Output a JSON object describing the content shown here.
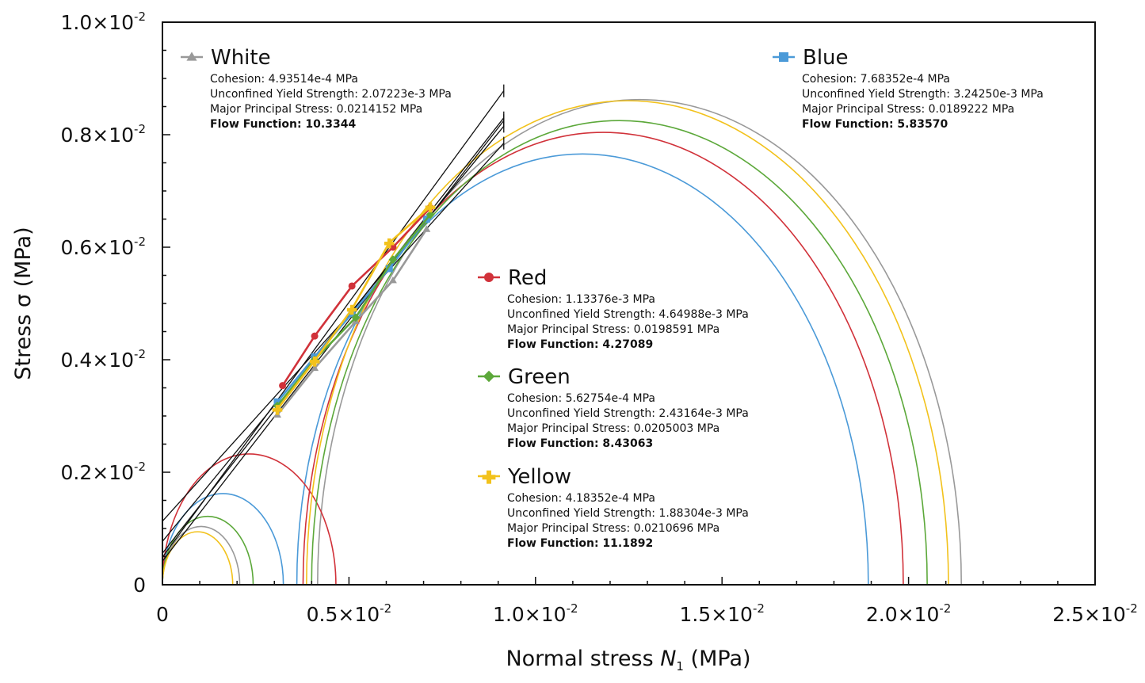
{
  "chart_data": {
    "type": "scatter",
    "xlabel_main": "Normal stress ",
    "xlabel_var": "N",
    "xlabel_sub": "1",
    "xlabel_unit": " (MPa)",
    "ylabel": "Stress σ (MPa)",
    "xlim": [
      0,
      0.025
    ],
    "ylim": [
      0,
      0.01
    ],
    "grid": false,
    "legend_placement": "inside",
    "x_ticks": [
      {
        "mant": "0",
        "exp": ""
      },
      {
        "mant": "0.5×10",
        "exp": "-2"
      },
      {
        "mant": "1.0×10",
        "exp": "-2"
      },
      {
        "mant": "1.5×10",
        "exp": "-2"
      },
      {
        "mant": "2.0×10",
        "exp": "-2"
      },
      {
        "mant": "2.5×10",
        "exp": "-2"
      }
    ],
    "y_ticks": [
      {
        "mant": "0",
        "exp": ""
      },
      {
        "mant": "0.2×10",
        "exp": "-2"
      },
      {
        "mant": "0.4×10",
        "exp": "-2"
      },
      {
        "mant": "0.6×10",
        "exp": "-2"
      },
      {
        "mant": "0.8×10",
        "exp": "-2"
      },
      {
        "mant": "1.0×10",
        "exp": "-2"
      }
    ],
    "series": [
      {
        "name": "White",
        "color": "#999999",
        "marker": "triangle",
        "points": [
          [
            0.00308,
            0.00302
          ],
          [
            0.00408,
            0.00385
          ],
          [
            0.00518,
            0.00468
          ],
          [
            0.00618,
            0.00541
          ],
          [
            0.00708,
            0.00632
          ]
        ],
        "yield_locus": [
          [
            0,
            0.00049
          ],
          [
            0.00915,
            0.00878
          ]
        ],
        "small_circle": {
          "center": 0.001036,
          "radius": 0.001036
        },
        "large_circle": {
          "center": 0.012787,
          "radius": 0.008628
        },
        "legend": {
          "cohesion": "Cohesion: 4.93514e-4 MPa",
          "ucys": "Unconfined Yield Strength: 2.07223e-3 MPa",
          "mps": "Major Principal Stress: 0.0214152 MPa",
          "ff": "Flow Function: 10.3344"
        }
      },
      {
        "name": "Blue",
        "color": "#4b9ad8",
        "marker": "square",
        "points": [
          [
            0.00308,
            0.00325
          ],
          [
            0.00408,
            0.00405
          ],
          [
            0.00508,
            0.00482
          ],
          [
            0.00608,
            0.00562
          ],
          [
            0.00708,
            0.0065
          ]
        ],
        "yield_locus": [
          [
            0,
            0.00077
          ],
          [
            0.00915,
            0.00815
          ]
        ],
        "small_circle": {
          "center": 0.001621,
          "radius": 0.001621
        },
        "large_circle": {
          "center": 0.011262,
          "radius": 0.00766
        },
        "legend": {
          "cohesion": "Cohesion: 7.68352e-4 MPa",
          "ucys": "Unconfined Yield Strength: 3.24250e-3 MPa",
          "mps": "Major Principal Stress: 0.0189222 MPa",
          "ff": "Flow Function: 5.83570"
        }
      },
      {
        "name": "Red",
        "color": "#d1323a",
        "marker": "circle",
        "points": [
          [
            0.00322,
            0.00354
          ],
          [
            0.00408,
            0.00442
          ],
          [
            0.00508,
            0.00531
          ],
          [
            0.00618,
            0.006
          ],
          [
            0.00718,
            0.0067
          ]
        ],
        "yield_locus": [
          [
            0,
            0.00113
          ],
          [
            0.00915,
            0.00785
          ]
        ],
        "small_circle": {
          "center": 0.002325,
          "radius": 0.002325
        },
        "large_circle": {
          "center": 0.011814,
          "radius": 0.008045
        },
        "legend": {
          "cohesion": "Cohesion: 1.13376e-3 MPa",
          "ucys": "Unconfined Yield Strength: 4.64988e-3 MPa",
          "mps": "Major Principal Stress: 0.0198591 MPa",
          "ff": "Flow Function: 4.27089"
        }
      },
      {
        "name": "Green",
        "color": "#5ca83a",
        "marker": "diamond",
        "points": [
          [
            0.00308,
            0.00318
          ],
          [
            0.00408,
            0.004
          ],
          [
            0.00518,
            0.00475
          ],
          [
            0.00618,
            0.00578
          ],
          [
            0.00718,
            0.00658
          ]
        ],
        "yield_locus": [
          [
            0,
            0.00056
          ],
          [
            0.00915,
            0.0083
          ]
        ],
        "small_circle": {
          "center": 0.001216,
          "radius": 0.001216
        },
        "large_circle": {
          "center": 0.012249,
          "radius": 0.008251
        },
        "legend": {
          "cohesion": "Cohesion: 5.62754e-4 MPa",
          "ucys": "Unconfined Yield Strength: 2.43164e-3 MPa",
          "mps": "Major Principal Stress: 0.0205003 MPa",
          "ff": "Flow Function: 8.43063"
        }
      },
      {
        "name": "Yellow",
        "color": "#f2c21c",
        "marker": "plus",
        "points": [
          [
            0.00308,
            0.00312
          ],
          [
            0.00408,
            0.00398
          ],
          [
            0.00508,
            0.0049
          ],
          [
            0.00608,
            0.00608
          ],
          [
            0.00718,
            0.00672
          ]
        ],
        "yield_locus": [
          [
            0,
            0.00042
          ],
          [
            0.00915,
            0.00825
          ]
        ],
        "small_circle": {
          "center": 0.000942,
          "radius": 0.000942
        },
        "large_circle": {
          "center": 0.012466,
          "radius": 0.008604
        },
        "legend": {
          "cohesion": "Cohesion: 4.18352e-4 MPa",
          "ucys": "Unconfined Yield Strength: 1.88304e-3 MPa",
          "mps": "Major Principal Stress: 0.0210696 MPa",
          "ff": "Flow Function: 11.1892"
        }
      }
    ]
  }
}
